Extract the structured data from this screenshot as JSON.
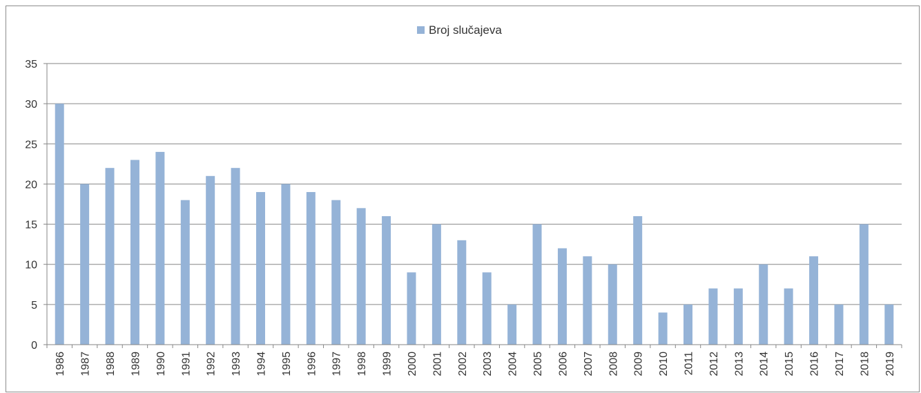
{
  "chart_data": {
    "type": "bar",
    "categories": [
      "1986",
      "1987",
      "1988",
      "1989",
      "1990",
      "1991",
      "1992",
      "1993",
      "1994",
      "1995",
      "1996",
      "1997",
      "1998",
      "1999",
      "2000",
      "2001",
      "2002",
      "2003",
      "2004",
      "2005",
      "2006",
      "2007",
      "2008",
      "2009",
      "2010",
      "2011",
      "2012",
      "2013",
      "2014",
      "2015",
      "2016",
      "2017",
      "2018",
      "2019"
    ],
    "series": [
      {
        "name": "Broj slučajeva",
        "values": [
          30,
          20,
          22,
          23,
          24,
          18,
          21,
          22,
          19,
          20,
          19,
          18,
          17,
          16,
          9,
          15,
          13,
          9,
          5,
          15,
          12,
          11,
          10,
          16,
          4,
          5,
          7,
          7,
          10,
          7,
          11,
          5,
          15,
          5
        ]
      }
    ],
    "ylim": [
      0,
      35
    ],
    "yticks": [
      0,
      5,
      10,
      15,
      20,
      25,
      30,
      35
    ],
    "grid": true,
    "legend_position": "top-center",
    "colors": {
      "bar": "#95b3d7",
      "grid": "#868686",
      "axis": "#868686",
      "text": "#333333"
    }
  }
}
